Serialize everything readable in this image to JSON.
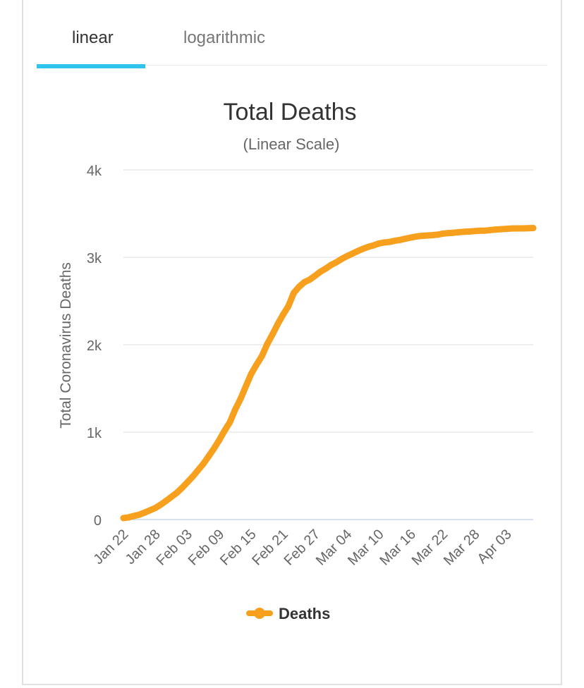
{
  "tabs": [
    {
      "label": "linear",
      "active": true
    },
    {
      "label": "logarithmic",
      "active": false
    }
  ],
  "accent_color": "#2ec4ec",
  "chart_data": {
    "type": "line",
    "title": "Total Deaths",
    "subtitle": "(Linear Scale)",
    "xlabel": "",
    "ylabel": "Total Coronavirus Deaths",
    "ylim": [
      0,
      4000
    ],
    "yticks": [
      {
        "value": 0,
        "label": "0"
      },
      {
        "value": 1000,
        "label": "1k"
      },
      {
        "value": 2000,
        "label": "2k"
      },
      {
        "value": 3000,
        "label": "3k"
      },
      {
        "value": 4000,
        "label": "4k"
      }
    ],
    "grid": true,
    "legend": "bottom-center",
    "xtick_labels": [
      "Jan 22",
      "Jan 28",
      "Feb 03",
      "Feb 09",
      "Feb 15",
      "Feb 21",
      "Feb 27",
      "Mar 04",
      "Mar 10",
      "Mar 16",
      "Mar 22",
      "Mar 28",
      "Apr 03"
    ],
    "series": [
      {
        "name": "Deaths",
        "color": "#f7a01e",
        "x": [
          "Jan 22",
          "Jan 23",
          "Jan 24",
          "Jan 25",
          "Jan 26",
          "Jan 27",
          "Jan 28",
          "Jan 29",
          "Jan 30",
          "Jan 31",
          "Feb 01",
          "Feb 02",
          "Feb 03",
          "Feb 04",
          "Feb 05",
          "Feb 06",
          "Feb 07",
          "Feb 08",
          "Feb 09",
          "Feb 10",
          "Feb 11",
          "Feb 12",
          "Feb 13",
          "Feb 14",
          "Feb 15",
          "Feb 16",
          "Feb 17",
          "Feb 18",
          "Feb 19",
          "Feb 20",
          "Feb 21",
          "Feb 22",
          "Feb 23",
          "Feb 24",
          "Feb 25",
          "Feb 26",
          "Feb 27",
          "Feb 28",
          "Feb 29",
          "Mar 01",
          "Mar 02",
          "Mar 03",
          "Mar 04",
          "Mar 05",
          "Mar 06",
          "Mar 07",
          "Mar 08",
          "Mar 09",
          "Mar 10",
          "Mar 11",
          "Mar 12",
          "Mar 13",
          "Mar 14",
          "Mar 15",
          "Mar 16",
          "Mar 17",
          "Mar 18",
          "Mar 19",
          "Mar 20",
          "Mar 21",
          "Mar 22",
          "Mar 23",
          "Mar 24",
          "Mar 25",
          "Mar 26",
          "Mar 27",
          "Mar 28",
          "Mar 29",
          "Mar 30",
          "Mar 31",
          "Apr 01",
          "Apr 02",
          "Apr 03",
          "Apr 04",
          "Apr 05",
          "Apr 06",
          "Apr 07",
          "Apr 08"
        ],
        "values": [
          17,
          25,
          41,
          56,
          80,
          106,
          132,
          170,
          213,
          259,
          304,
          361,
          425,
          490,
          563,
          636,
          722,
          811,
          908,
          1016,
          1113,
          1259,
          1380,
          1523,
          1665,
          1770,
          1868,
          2004,
          2118,
          2236,
          2345,
          2442,
          2592,
          2663,
          2715,
          2744,
          2788,
          2835,
          2870,
          2912,
          2943,
          2981,
          3013,
          3042,
          3070,
          3097,
          3119,
          3136,
          3158,
          3169,
          3176,
          3189,
          3199,
          3213,
          3226,
          3237,
          3245,
          3249,
          3253,
          3259,
          3270,
          3277,
          3281,
          3287,
          3292,
          3295,
          3300,
          3304,
          3305,
          3312,
          3318,
          3322,
          3326,
          3330,
          3331,
          3331,
          3333,
          3335
        ]
      }
    ]
  }
}
